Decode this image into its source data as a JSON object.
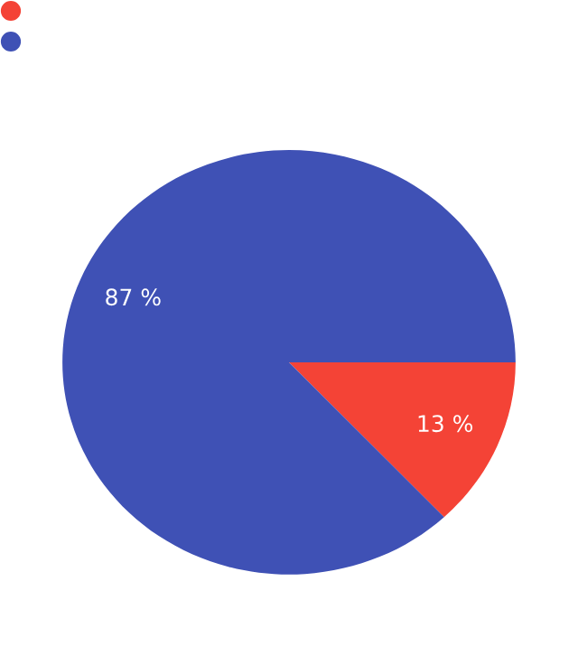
{
  "chart_data": {
    "type": "pie",
    "categories": [
      null,
      null
    ],
    "values": [
      13,
      87
    ],
    "colors": [
      "#f44336",
      "#3f51b5"
    ],
    "value_labels": [
      "13 %",
      "87 %"
    ]
  }
}
